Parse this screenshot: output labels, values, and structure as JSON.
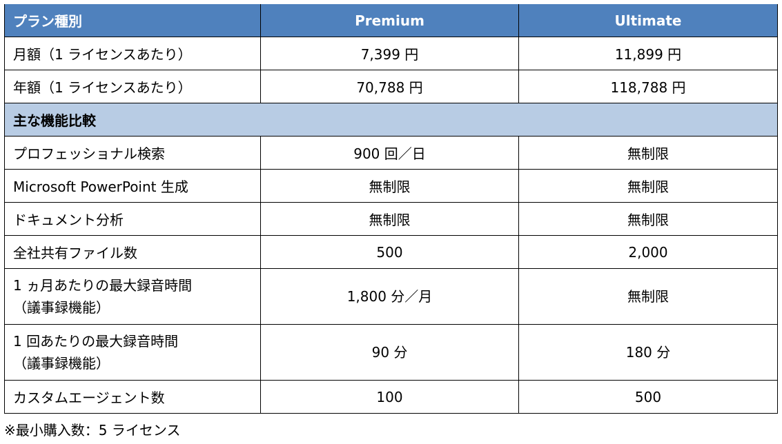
{
  "colors": {
    "header_bg": "#4F81BD",
    "section_bg": "#B8CCE4"
  },
  "header": {
    "label": "プラン種別",
    "col1": "Premium",
    "col2": "Ultimate"
  },
  "price_rows": [
    {
      "label": "月額（1 ライセンスあたり）",
      "premium": "7,399 円",
      "ultimate": "11,899 円"
    },
    {
      "label": "年額（1 ライセンスあたり）",
      "premium": "70,788 円",
      "ultimate": "118,788 円"
    }
  ],
  "section": {
    "label": "主な機能比較"
  },
  "feature_rows": [
    {
      "label": "プロフェッショナル検索",
      "premium": "900 回／日",
      "ultimate": "無制限"
    },
    {
      "label": "Microsoft PowerPoint 生成",
      "premium": "無制限",
      "ultimate": "無制限"
    },
    {
      "label": "ドキュメント分析",
      "premium": "無制限",
      "ultimate": "無制限"
    },
    {
      "label": "全社共有ファイル数",
      "premium": "500",
      "ultimate": "2,000"
    },
    {
      "label": "1 ヵ月あたりの最大録音時間",
      "sub": "（議事録機能）",
      "premium": "1,800 分／月",
      "ultimate": "無制限"
    },
    {
      "label": "1 回あたりの最大録音時間",
      "sub": "（議事録機能）",
      "premium": "90 分",
      "ultimate": "180 分"
    },
    {
      "label": "カスタムエージェント数",
      "premium": "100",
      "ultimate": "500"
    }
  ],
  "note": "※最小購入数：5 ライセンス"
}
